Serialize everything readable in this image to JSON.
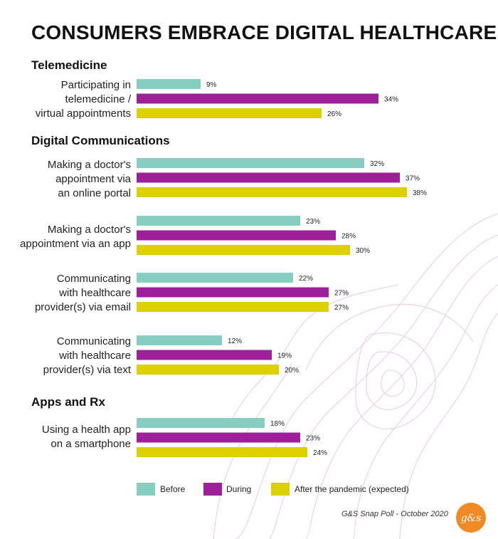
{
  "title": "CONSUMERS EMBRACE DIGITAL HEALTHCARE",
  "sections": [
    {
      "label": "Telemedicine"
    },
    {
      "label": "Digital Communications"
    },
    {
      "label": "Apps and Rx"
    }
  ],
  "categories": [
    {
      "label": "Participating in\ntelemedicine /\nvirtual appointments"
    },
    {
      "label": "Making a doctor's\nappointment via\nan online portal"
    },
    {
      "label": "Making a doctor's\nappointment via an app"
    },
    {
      "label": "Communicating\nwith healthcare\nprovider(s) via email"
    },
    {
      "label": "Communicating\nwith healthcare\nprovider(s) via text"
    },
    {
      "label": "Using a health app\non a smartphone"
    }
  ],
  "legend": [
    {
      "label": "Before",
      "color": "#86cfc0"
    },
    {
      "label": "During",
      "color": "#9e1f9a"
    },
    {
      "label": "After the pandemic (expected)",
      "color": "#ddd000"
    }
  ],
  "source": "G&S Snap Poll - October 2020",
  "logo": {
    "text": "g&s",
    "color": "#f08a24"
  },
  "chart_data": {
    "type": "bar",
    "orientation": "horizontal",
    "title": "CONSUMERS EMBRACE DIGITAL HEALTHCARE",
    "unit": "%",
    "xlim": [
      0,
      40
    ],
    "groups": [
      {
        "section": "Telemedicine",
        "categories": [
          "Participating in telemedicine / virtual appointments"
        ]
      },
      {
        "section": "Digital Communications",
        "categories": [
          "Making a doctor's appointment via an online portal",
          "Making a doctor's appointment via an app",
          "Communicating with healthcare provider(s) via email",
          "Communicating with healthcare provider(s) via text"
        ]
      },
      {
        "section": "Apps and Rx",
        "categories": [
          "Using a health app on a smartphone"
        ]
      }
    ],
    "categories": [
      "Participating in telemedicine / virtual appointments",
      "Making a doctor's appointment via an online portal",
      "Making a doctor's appointment via an app",
      "Communicating with healthcare provider(s) via email",
      "Communicating with healthcare provider(s) via text",
      "Using a health app on a smartphone"
    ],
    "series": [
      {
        "name": "Before",
        "color": "#86cfc0",
        "values": [
          9,
          32,
          23,
          22,
          12,
          18
        ]
      },
      {
        "name": "During",
        "color": "#9e1f9a",
        "values": [
          34,
          37,
          28,
          27,
          19,
          23
        ]
      },
      {
        "name": "After the pandemic (expected)",
        "color": "#ddd000",
        "values": [
          26,
          38,
          30,
          27,
          20,
          24
        ]
      }
    ],
    "value_labels": [
      [
        "9%",
        "32%",
        "23%",
        "22%",
        "12%",
        "18%"
      ],
      [
        "34%",
        "37%",
        "28%",
        "27%",
        "19%",
        "23%"
      ],
      [
        "26%",
        "38%",
        "30%",
        "27%",
        "20%",
        "24%"
      ]
    ],
    "legend_position": "bottom"
  }
}
